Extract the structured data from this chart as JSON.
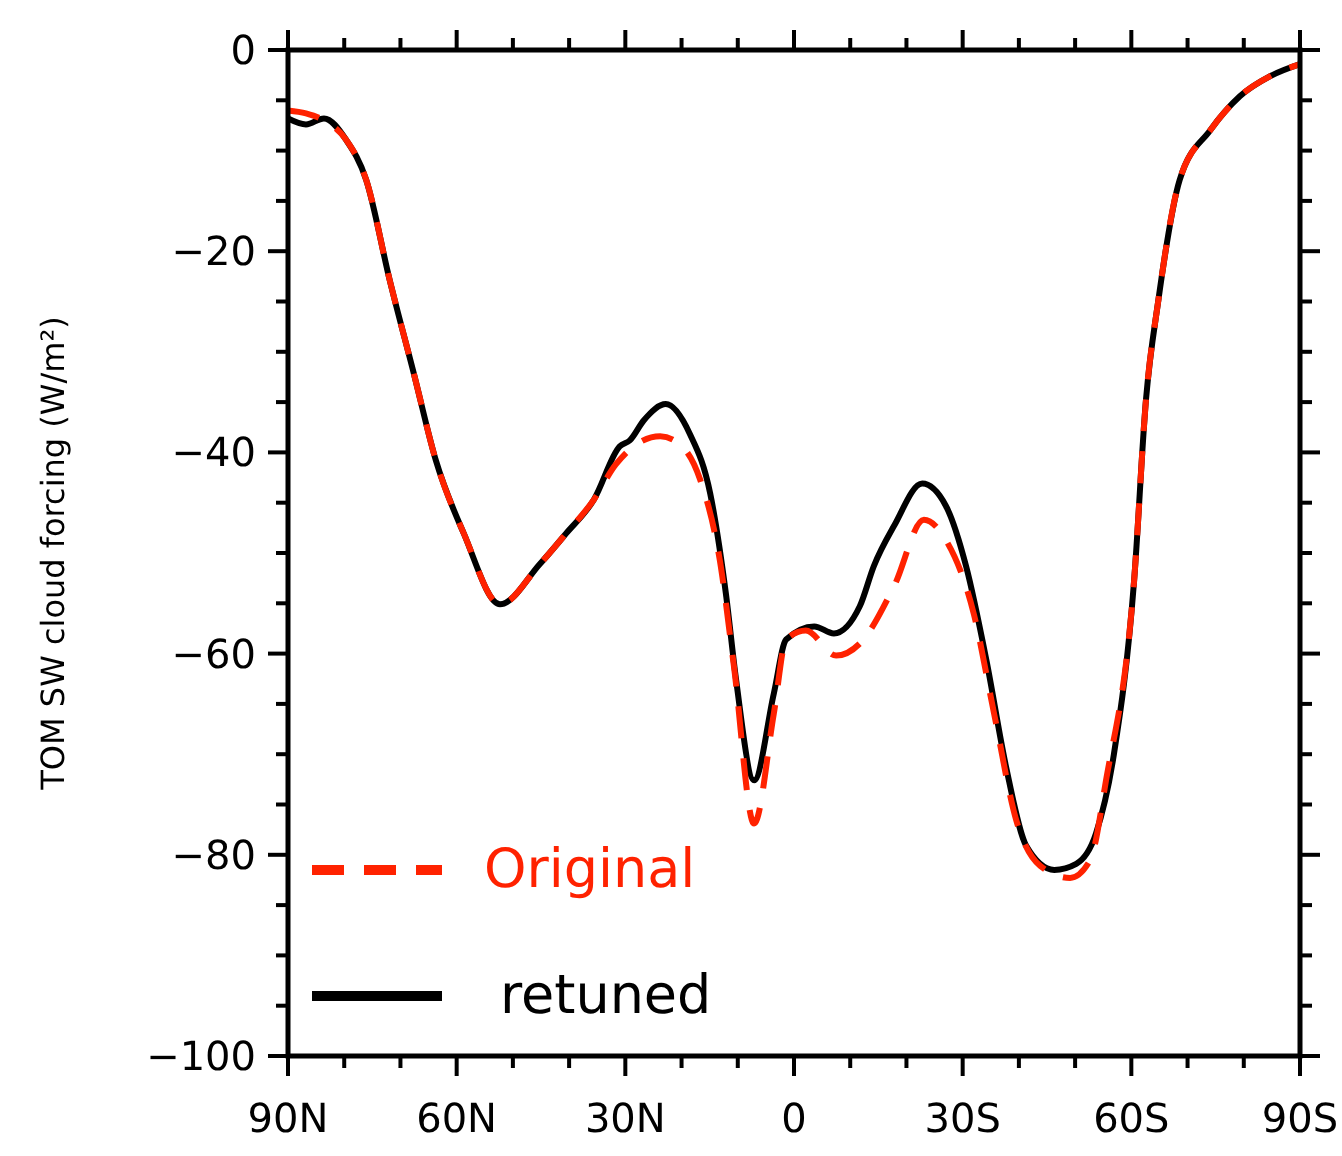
{
  "chart_data": {
    "type": "line",
    "ylabel": "TOM SW cloud forcing (W/m²)",
    "xlim": [
      90,
      -90
    ],
    "ylim": [
      -100,
      0
    ],
    "xticks": [
      {
        "value": 90,
        "label": "90N"
      },
      {
        "value": 80,
        "label": null
      },
      {
        "value": 70,
        "label": null
      },
      {
        "value": 60,
        "label": "60N"
      },
      {
        "value": 50,
        "label": null
      },
      {
        "value": 40,
        "label": null
      },
      {
        "value": 30,
        "label": "30N"
      },
      {
        "value": 20,
        "label": null
      },
      {
        "value": 10,
        "label": null
      },
      0,
      {
        "value": -10,
        "label": null
      },
      {
        "value": -20,
        "label": null
      },
      {
        "value": -30,
        "label": "30S"
      },
      {
        "value": -40,
        "label": null
      },
      {
        "value": -50,
        "label": null
      },
      {
        "value": -60,
        "label": "60S"
      },
      {
        "value": -70,
        "label": null
      },
      {
        "value": -80,
        "label": null
      },
      {
        "value": -90,
        "label": "90S"
      }
    ],
    "yticks": [
      -100,
      {
        "value": -95,
        "label": null
      },
      {
        "value": -90,
        "label": null
      },
      {
        "value": -85,
        "label": null
      },
      -80,
      {
        "value": -75,
        "label": null
      },
      {
        "value": -70,
        "label": null
      },
      {
        "value": -65,
        "label": null
      },
      -60,
      {
        "value": -55,
        "label": null
      },
      {
        "value": -50,
        "label": null
      },
      {
        "value": -45,
        "label": null
      },
      -40,
      {
        "value": -35,
        "label": null
      },
      {
        "value": -30,
        "label": null
      },
      {
        "value": -25,
        "label": null
      },
      -20,
      {
        "value": -15,
        "label": null
      },
      {
        "value": -10,
        "label": null
      },
      {
        "value": -5,
        "label": null
      },
      0
    ],
    "legend": "bottom left",
    "grid": false,
    "series": [
      {
        "name": "Original",
        "color": "#ff2200",
        "line_style": "dashed",
        "x": [
          90,
          86.8,
          83.6,
          79.7,
          76.1,
          71.9,
          67.6,
          63.7,
          58.7,
          52.3,
          45.2,
          40.6,
          35.6,
          31.7,
          23.8,
          20.3,
          16.7,
          13.2,
          10.7,
          7.1,
          3.6,
          1.4,
          -2.1,
          -7.5,
          -11.7,
          -17.8,
          -23.1,
          -27,
          -32,
          -35.6,
          -39.5,
          -43.8,
          -49.1,
          -52.7,
          -55.5,
          -60.5,
          -62.6,
          -64.8,
          -68.6,
          -74,
          -79.3,
          -84.7,
          -90
        ],
        "values": [
          -6,
          -6.3,
          -7,
          -8.9,
          -12.9,
          -22.9,
          -32.2,
          -40.8,
          -48.1,
          -55.1,
          -51.1,
          -48.1,
          -44.7,
          -41.2,
          -38.4,
          -39.2,
          -42.7,
          -50.7,
          -61.2,
          -76.9,
          -66,
          -58.6,
          -57.7,
          -60.2,
          -59,
          -53.3,
          -46.7,
          -48.7,
          -56.1,
          -66,
          -76.5,
          -81.1,
          -82.3,
          -80.5,
          -72.6,
          -52.7,
          -34.8,
          -24.9,
          -12.9,
          -8,
          -4.6,
          -2.6,
          -1.4
        ]
      },
      {
        "name": "retuned",
        "color": "#000000",
        "line_style": "solid",
        "x": [
          90,
          86.8,
          83.6,
          79.7,
          76.1,
          71.9,
          67.6,
          63.7,
          58.7,
          52.3,
          45.2,
          40.6,
          35.6,
          31,
          29.2,
          26.7,
          22.8,
          18.5,
          14.9,
          12.1,
          10.3,
          7.1,
          3.6,
          1.4,
          -3.6,
          -7.1,
          -11.7,
          -14.2,
          -17.8,
          -22.8,
          -27,
          -30.6,
          -34.2,
          -37.7,
          -41.3,
          -46.3,
          -50.2,
          -53.7,
          -56.9,
          -60.5,
          -62.6,
          -64.8,
          -68.6,
          -74,
          -79.3,
          -84.7,
          -90
        ],
        "values": [
          -6.8,
          -7.4,
          -6.8,
          -8.9,
          -12.9,
          -22.9,
          -32.2,
          -40.8,
          -48.1,
          -55.1,
          -51.1,
          -48.1,
          -44.7,
          -39.4,
          -38.8,
          -36.8,
          -35.2,
          -38.2,
          -44.1,
          -54.1,
          -62.6,
          -72.6,
          -64,
          -58.6,
          -57.3,
          -58,
          -55.3,
          -51.3,
          -47.3,
          -43.1,
          -45.3,
          -51.3,
          -60.6,
          -71.2,
          -79.1,
          -81.5,
          -80.9,
          -77.9,
          -70,
          -52.7,
          -34.8,
          -24.9,
          -12.9,
          -8,
          -4.6,
          -2.6,
          -1.4
        ]
      }
    ]
  }
}
